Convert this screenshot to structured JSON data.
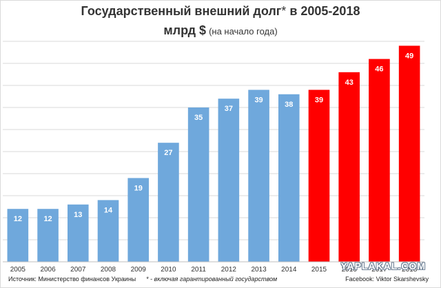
{
  "title": {
    "line1": "Государственный внешний долг",
    "star": "*",
    "line1_suffix": " в 2005-2018",
    "line2_main": "млрд $",
    "line2_sub": "(на начало года)"
  },
  "footer": {
    "source": "Источник: Министерство финансов Украины",
    "note": "* - включая гарантированный государством",
    "credit": "Facebook: Viktor Skarshevsky"
  },
  "watermark": "YAPLAKAL.COM",
  "colors": {
    "bar_blue": "#6fa8dc",
    "bar_red": "#ff0000",
    "grid": "#d9d9d9",
    "axis": "#bfbfbf",
    "label_text": "#ffffff",
    "tick_text": "#333333"
  },
  "chart_data": {
    "type": "bar",
    "categories": [
      "2005",
      "2006",
      "2007",
      "2008",
      "2009",
      "2010",
      "2011",
      "2012",
      "2013",
      "2014",
      "2015",
      "2016",
      "2017",
      "2018"
    ],
    "values": [
      12,
      12,
      13,
      14,
      19,
      27,
      35,
      37,
      39,
      38,
      39,
      43,
      46,
      49
    ],
    "data_labels": [
      "12",
      "12",
      "13",
      "14",
      "19",
      "27",
      "35",
      "37",
      "39",
      "38",
      "39",
      "43",
      "46",
      "49"
    ],
    "bar_colors": [
      "blue",
      "blue",
      "blue",
      "blue",
      "blue",
      "blue",
      "blue",
      "blue",
      "blue",
      "blue",
      "red",
      "red",
      "red",
      "red"
    ],
    "title": "Государственный внешний долг* в 2005-2018",
    "ylabel": "",
    "xlabel": "",
    "ylim": [
      0,
      50
    ],
    "grid": true,
    "legend": false
  }
}
